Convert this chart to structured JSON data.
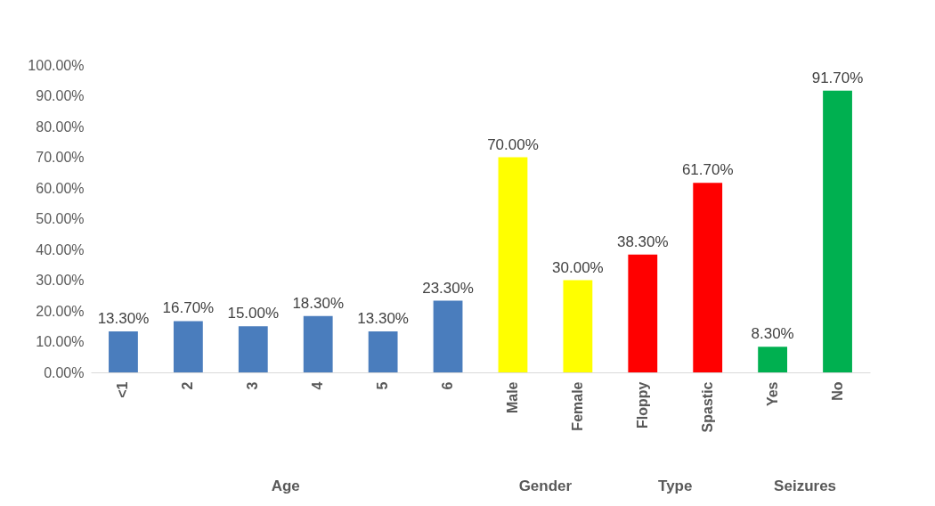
{
  "chart_data": {
    "type": "bar",
    "categories": [
      "<1",
      "2",
      "3",
      "4",
      "5",
      "6",
      "Male",
      "Female",
      "Floppy",
      "Spastic",
      "Yes",
      "No"
    ],
    "values": [
      13.3,
      16.7,
      15.0,
      18.3,
      13.3,
      23.3,
      70.0,
      30.0,
      38.3,
      61.7,
      8.3,
      91.7
    ],
    "colors": [
      "#4a7dbd",
      "#4a7dbd",
      "#4a7dbd",
      "#4a7dbd",
      "#4a7dbd",
      "#4a7dbd",
      "#ffff00",
      "#ffff00",
      "#ff0000",
      "#ff0000",
      "#00b050",
      "#00b050"
    ],
    "value_labels": [
      "13.30%",
      "16.70%",
      "15.00%",
      "18.30%",
      "13.30%",
      "23.30%",
      "70.00%",
      "30.00%",
      "38.30%",
      "61.70%",
      "8.30%",
      "91.70%"
    ],
    "ylim": [
      0,
      100
    ],
    "yticks": [
      {
        "value": 0,
        "label": "0.00%"
      },
      {
        "value": 10,
        "label": "10.00%"
      },
      {
        "value": 20,
        "label": "20.00%"
      },
      {
        "value": 30,
        "label": "30.00%"
      },
      {
        "value": 40,
        "label": "40.00%"
      },
      {
        "value": 50,
        "label": "50.00%"
      },
      {
        "value": 60,
        "label": "60.00%"
      },
      {
        "value": 70,
        "label": "70.00%"
      },
      {
        "value": 80,
        "label": "80.00%"
      },
      {
        "value": 90,
        "label": "90.00%"
      },
      {
        "value": 100,
        "label": "100.00%"
      }
    ],
    "annotations": [
      "Age",
      "Gender",
      "Type",
      "Seizures"
    ],
    "grid": false,
    "legend": false
  }
}
